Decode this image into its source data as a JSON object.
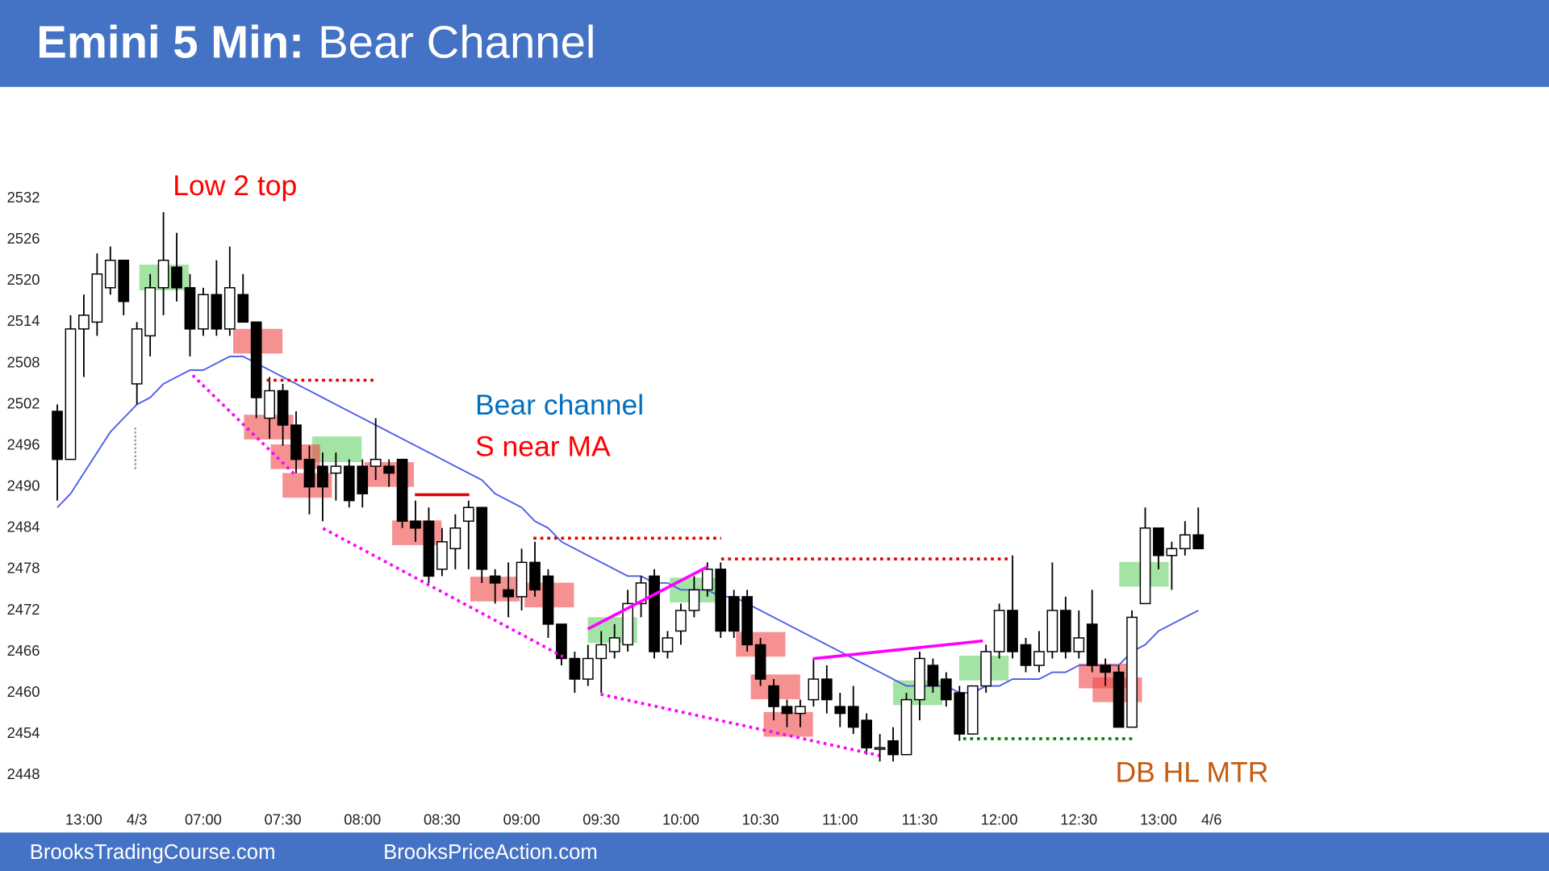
{
  "chart_data": {
    "type": "candlestick",
    "title_bold": "Emini 5 Min:",
    "title": "Bear Channel",
    "footer": [
      "BrooksTradingCourse.com",
      "BrooksPriceAction.com"
    ],
    "annotations": [
      {
        "text": "Low 2 top",
        "color": "#ff0000"
      },
      {
        "text": "Bear channel",
        "color": "#0070c0"
      },
      {
        "text": "S near MA",
        "color": "#ff0000"
      },
      {
        "text": "DB HL MTR",
        "color": "#c55a11"
      }
    ],
    "categories": [
      null,
      null,
      "13:00",
      null,
      null,
      null,
      "4/3",
      null,
      null,
      null,
      null,
      "07:00",
      null,
      null,
      null,
      null,
      null,
      "07:30",
      null,
      null,
      null,
      null,
      null,
      "08:00",
      null,
      null,
      null,
      null,
      null,
      "08:30",
      null,
      null,
      null,
      null,
      null,
      "09:00",
      null,
      null,
      null,
      null,
      null,
      "09:30",
      null,
      null,
      null,
      null,
      null,
      "10:00",
      null,
      null,
      null,
      null,
      null,
      "10:30",
      null,
      null,
      null,
      null,
      null,
      "11:00",
      null,
      null,
      null,
      null,
      null,
      "11:30",
      null,
      null,
      null,
      null,
      null,
      "12:00",
      null,
      null,
      null,
      null,
      null,
      "12:30",
      null,
      null,
      null,
      null,
      null,
      "13:00",
      null,
      null,
      null,
      "4/6"
    ],
    "open": [
      2501,
      2494,
      2513,
      2514,
      2519,
      2523,
      2505,
      2512,
      2519,
      2522,
      2519,
      2513,
      2518,
      2513,
      2518,
      2514,
      2500,
      2504,
      2499,
      2494,
      2493,
      2492,
      2493,
      2493,
      2493,
      2493,
      2494,
      2485,
      2485,
      2478,
      2481,
      2485,
      2487,
      2477,
      2475,
      2474,
      2479,
      2477,
      2470,
      2465,
      2462,
      2465,
      2466,
      2467,
      2473,
      2477,
      2466,
      2469,
      2472,
      2475,
      2478,
      2474,
      2474,
      2467,
      2461,
      2458,
      2457,
      2459,
      2462,
      2458,
      2458,
      2456,
      2452,
      2453,
      2451,
      2459,
      2464,
      2462,
      2460,
      2454,
      2461,
      2466,
      2472,
      2467,
      2464,
      2466,
      2472,
      2466,
      2470,
      2464,
      2463,
      2455,
      2473,
      2484,
      2480,
      2481,
      2483,
      null
    ],
    "high": [
      2502,
      2515,
      2518,
      2524,
      2525,
      2523,
      2514,
      2521,
      2530,
      2527,
      2521,
      2519,
      2523,
      2525,
      2521,
      2514,
      2506,
      2505,
      2501,
      2496,
      2495,
      2495,
      2494,
      2494,
      2500,
      2494,
      2494,
      2488,
      2487,
      2484,
      2486,
      2488,
      2487,
      2478,
      2479,
      2481,
      2482,
      2478,
      2470,
      2466,
      2467,
      2469,
      2470,
      2475,
      2477,
      2478,
      2469,
      2473,
      2477,
      2479,
      2479,
      2475,
      2475,
      2468,
      2462,
      2459,
      2459,
      2465,
      2464,
      2460,
      2461,
      2457,
      2454,
      2455,
      2460,
      2466,
      2465,
      2463,
      2461,
      2461,
      2467,
      2473,
      2480,
      2468,
      2469,
      2479,
      2474,
      2472,
      2475,
      2465,
      2464,
      2472,
      2487,
      2484,
      2482,
      2485,
      2487,
      null
    ],
    "low": [
      2488,
      2494,
      2506,
      2512,
      2518,
      2515,
      2502,
      2509,
      2515,
      2517,
      2509,
      2512,
      2512,
      2512,
      2514,
      2500,
      2497,
      2496,
      2492,
      2486,
      2485,
      2488,
      2487,
      2487,
      2491,
      2490,
      2484,
      2482,
      2476,
      2477,
      2478,
      2478,
      2476,
      2473,
      2471,
      2472,
      2474,
      2468,
      2464,
      2460,
      2461,
      2460,
      2465,
      2466,
      2471,
      2465,
      2465,
      2467,
      2471,
      2474,
      2468,
      2468,
      2466,
      2461,
      2456,
      2455,
      2455,
      2458,
      2457,
      2455,
      2454,
      2451,
      2450,
      2450,
      2451,
      2456,
      2460,
      2458,
      2453,
      2454,
      2460,
      2465,
      2465,
      2463,
      2463,
      2465,
      2465,
      2465,
      2463,
      2461,
      2455,
      2455,
      2473,
      2478,
      2475,
      2480,
      2481,
      null
    ],
    "close": [
      2494,
      2513,
      2515,
      2521,
      2523,
      2517,
      2513,
      2519,
      2523,
      2519,
      2513,
      2518,
      2513,
      2519,
      2514,
      2503,
      2504,
      2499,
      2494,
      2490,
      2490,
      2493,
      2488,
      2489,
      2494,
      2492,
      2485,
      2484,
      2477,
      2482,
      2484,
      2487,
      2478,
      2476,
      2474,
      2479,
      2475,
      2470,
      2465,
      2462,
      2465,
      2467,
      2468,
      2473,
      2476,
      2466,
      2468,
      2472,
      2475,
      2478,
      2469,
      2469,
      2467,
      2462,
      2458,
      2457,
      2458,
      2462,
      2459,
      2457,
      2455,
      2452,
      2452,
      2451,
      2459,
      2465,
      2461,
      2459,
      2454,
      2461,
      2466,
      2472,
      2466,
      2464,
      2466,
      2472,
      2466,
      2468,
      2464,
      2463,
      2455,
      2471,
      2484,
      2480,
      2481,
      2483,
      2481,
      null
    ],
    "moving_average": [
      2487,
      2489,
      2492,
      2495,
      2498,
      2500,
      2502,
      2503,
      2505,
      2506,
      2507,
      2507,
      2508,
      2509,
      2509,
      2508,
      2507,
      2506,
      2505,
      2504,
      2503,
      2502,
      2501,
      2500,
      2499,
      2498,
      2497,
      2496,
      2495,
      2494,
      2493,
      2492,
      2491,
      2489,
      2488,
      2487,
      2485,
      2484,
      2482,
      2481,
      2480,
      2479,
      2478,
      2477,
      2477,
      2476,
      2476,
      2475,
      2475,
      2475,
      2474,
      2474,
      2473,
      2472,
      2471,
      2470,
      2469,
      2468,
      2467,
      2466,
      2465,
      2464,
      2463,
      2462,
      2461,
      2461,
      2461,
      2461,
      2460,
      2460,
      2461,
      2461,
      2462,
      2462,
      2462,
      2463,
      2463,
      2464,
      2464,
      2464,
      2464,
      2466,
      2467,
      2469,
      2470,
      2471,
      2472,
      null
    ],
    "up_color": "#ffffff",
    "down_color": "#000000",
    "ma_color": "#4a5ae8",
    "ylim": [
      2448,
      2532
    ],
    "yticks": [
      2448,
      2454,
      2460,
      2466,
      2472,
      2478,
      2484,
      2490,
      2496,
      2502,
      2508,
      2514,
      2520,
      2526,
      2532
    ]
  }
}
